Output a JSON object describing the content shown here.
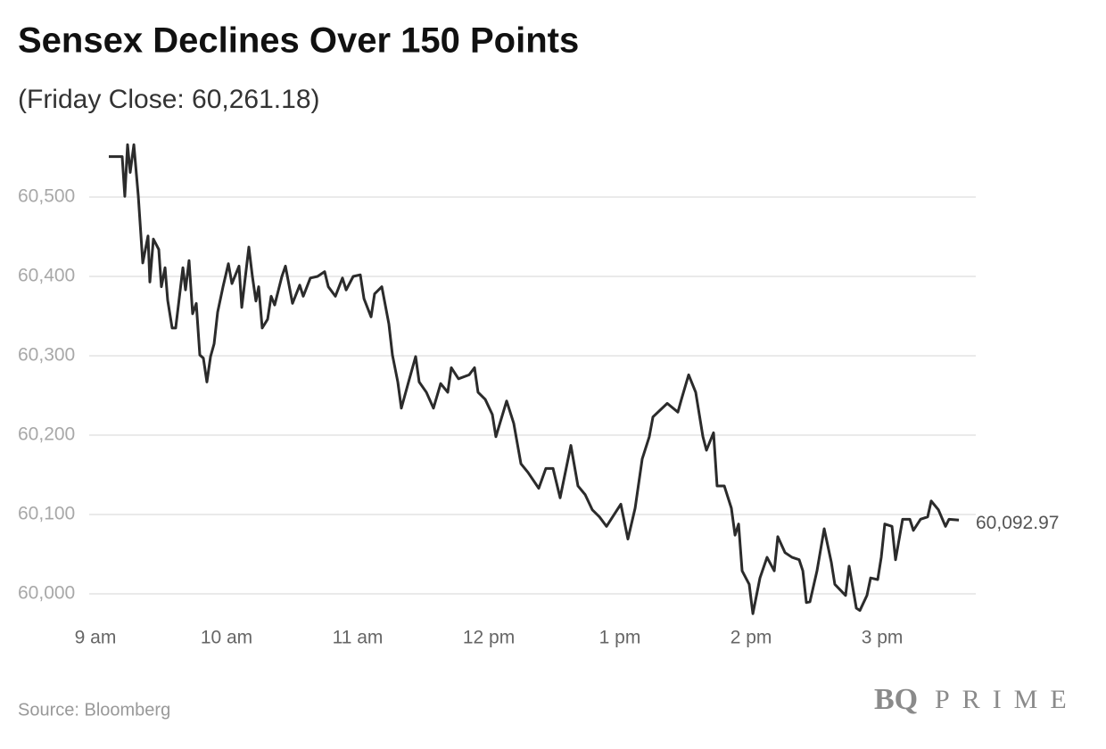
{
  "chart_data": {
    "type": "line",
    "title": "Sensex Declines Over 150 Points",
    "subtitle": "(Friday Close: 60,261.18)",
    "source": "Source: Bloomberg",
    "brand": "BQ",
    "brand2": "PRIME",
    "end_label": "60,092.97",
    "xlim": [
      9,
      15.714
    ],
    "xticks": [
      {
        "value": 9,
        "label": "9 am"
      },
      {
        "value": 10,
        "label": "10 am"
      },
      {
        "value": 11,
        "label": "11 am"
      },
      {
        "value": 12,
        "label": "12 pm"
      },
      {
        "value": 13,
        "label": "1 pm"
      },
      {
        "value": 14,
        "label": "2 pm"
      },
      {
        "value": 15,
        "label": "3 pm"
      }
    ],
    "ylim": [
      59970,
      60575
    ],
    "yticks": [
      {
        "value": 60000,
        "label": "60,000"
      },
      {
        "value": 60100,
        "label": "60,100"
      },
      {
        "value": 60200,
        "label": "60,200"
      },
      {
        "value": 60300,
        "label": "60,300"
      },
      {
        "value": 60400,
        "label": "60,400"
      },
      {
        "value": 60500,
        "label": "60,500"
      }
    ],
    "grid": true,
    "series": [
      {
        "name": "Sensex",
        "color": "#2b2b2b",
        "x": [
          9.102,
          9.204,
          9.224,
          9.245,
          9.265,
          9.293,
          9.327,
          9.361,
          9.401,
          9.415,
          9.442,
          9.483,
          9.503,
          9.531,
          9.551,
          9.585,
          9.612,
          9.667,
          9.687,
          9.714,
          9.741,
          9.769,
          9.796,
          9.823,
          9.85,
          9.878,
          9.905,
          9.932,
          9.973,
          10.014,
          10.041,
          10.095,
          10.116,
          10.17,
          10.197,
          10.224,
          10.245,
          10.272,
          10.313,
          10.34,
          10.367,
          10.422,
          10.449,
          10.503,
          10.558,
          10.585,
          10.639,
          10.694,
          10.748,
          10.776,
          10.83,
          10.884,
          10.912,
          10.966,
          11.02,
          11.048,
          11.102,
          11.129,
          11.184,
          11.238,
          11.265,
          11.306,
          11.333,
          11.388,
          11.442,
          11.469,
          11.524,
          11.578,
          11.633,
          11.687,
          11.714,
          11.769,
          11.85,
          11.891,
          11.918,
          11.973,
          12.027,
          12.054,
          12.136,
          12.19,
          12.245,
          12.299,
          12.381,
          12.435,
          12.49,
          12.544,
          12.626,
          12.68,
          12.735,
          12.789,
          12.844,
          12.898,
          12.952,
          13.007,
          13.061,
          13.116,
          13.17,
          13.224,
          13.252,
          13.361,
          13.442,
          13.469,
          13.524,
          13.578,
          13.633,
          13.66,
          13.714,
          13.741,
          13.796,
          13.85,
          13.878,
          13.905,
          13.932,
          13.986,
          14.014,
          14.068,
          14.122,
          14.177,
          14.204,
          14.259,
          14.313,
          14.367,
          14.395,
          14.422,
          14.449,
          14.503,
          14.558,
          14.612,
          14.639,
          14.721,
          14.748,
          14.803,
          14.83,
          14.884,
          14.912,
          14.966,
          14.993,
          15.02,
          15.075,
          15.102,
          15.156,
          15.211,
          15.238,
          15.293,
          15.347,
          15.374,
          15.429,
          15.483,
          15.51,
          15.585
        ],
        "values": [
          60551,
          60551,
          60501,
          60566,
          60531,
          60566,
          60501,
          60417,
          60451,
          60393,
          60447,
          60434,
          60387,
          60411,
          60370,
          60335,
          60335,
          60411,
          60383,
          60420,
          60353,
          60366,
          60301,
          60297,
          60267,
          60299,
          60315,
          60355,
          60387,
          60416,
          60391,
          60413,
          60361,
          60437,
          60400,
          60369,
          60387,
          60335,
          60346,
          60375,
          60364,
          60400,
          60413,
          60366,
          60389,
          60375,
          60398,
          60400,
          60406,
          60387,
          60375,
          60398,
          60383,
          60400,
          60402,
          60372,
          60349,
          60378,
          60387,
          60340,
          60301,
          60267,
          60234,
          60267,
          60299,
          60267,
          60254,
          60234,
          60265,
          60254,
          60285,
          60271,
          60276,
          60285,
          60254,
          60245,
          60226,
          60198,
          60243,
          60215,
          60164,
          60153,
          60133,
          60158,
          60158,
          60121,
          60187,
          60136,
          60125,
          60106,
          60097,
          60085,
          60099,
          60113,
          60069,
          60108,
          60170,
          60198,
          60223,
          60240,
          60229,
          60245,
          60276,
          60254,
          60198,
          60181,
          60203,
          60136,
          60136,
          60108,
          60074,
          60088,
          60029,
          60012,
          59975,
          60020,
          60046,
          60029,
          60072,
          60052,
          60046,
          60043,
          60029,
          59989,
          59990,
          60029,
          60082,
          60040,
          60012,
          59998,
          60035,
          59982,
          59979,
          59998,
          60020,
          60018,
          60046,
          60088,
          60085,
          60043,
          60094,
          60094,
          60080,
          60094,
          60097,
          60117,
          60106,
          60085,
          60094,
          60092.97
        ]
      }
    ]
  }
}
